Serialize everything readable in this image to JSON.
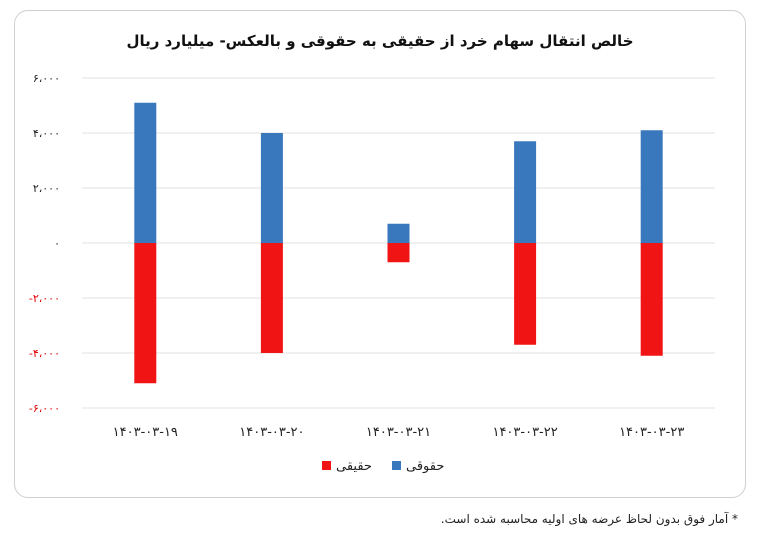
{
  "chart_data": {
    "type": "bar",
    "title": "خالص انتقال سهام خرد از حقیقی به حقوقی و بالعکس- میلیارد ریال",
    "xlabel": "",
    "ylabel": "",
    "categories": [
      "۱۴۰۳-۰۳-۱۹",
      "۱۴۰۳-۰۳-۲۰",
      "۱۴۰۳-۰۳-۲۱",
      "۱۴۰۳-۰۳-۲۲",
      "۱۴۰۳-۰۳-۲۳"
    ],
    "series": [
      {
        "name": "حقوقی",
        "color": "#3a78bd",
        "values": [
          5100,
          4000,
          700,
          3700,
          4100
        ]
      },
      {
        "name": "حقیقی",
        "color": "#f01414",
        "values": [
          -5100,
          -4000,
          -700,
          -3700,
          -4100
        ]
      }
    ],
    "ylim": [
      -6000,
      6000
    ],
    "yticks": [
      6000,
      4000,
      2000,
      0,
      -2000,
      -4000,
      -6000
    ],
    "ytick_labels": [
      "۶،۰۰۰",
      "۴،۰۰۰",
      "۲،۰۰۰",
      "۰",
      "-۲،۰۰۰",
      "-۴،۰۰۰",
      "-۶،۰۰۰"
    ],
    "negative_tick_color": "#e00000",
    "positive_tick_color": "#222222",
    "grid": true,
    "stacked": true,
    "legend": {
      "placement": "bottom-center",
      "order": [
        "حقیقی",
        "حقوقی"
      ]
    }
  },
  "footnote": "* آمار فوق بدون لحاظ عرضه های اولیه محاسبه شده است."
}
